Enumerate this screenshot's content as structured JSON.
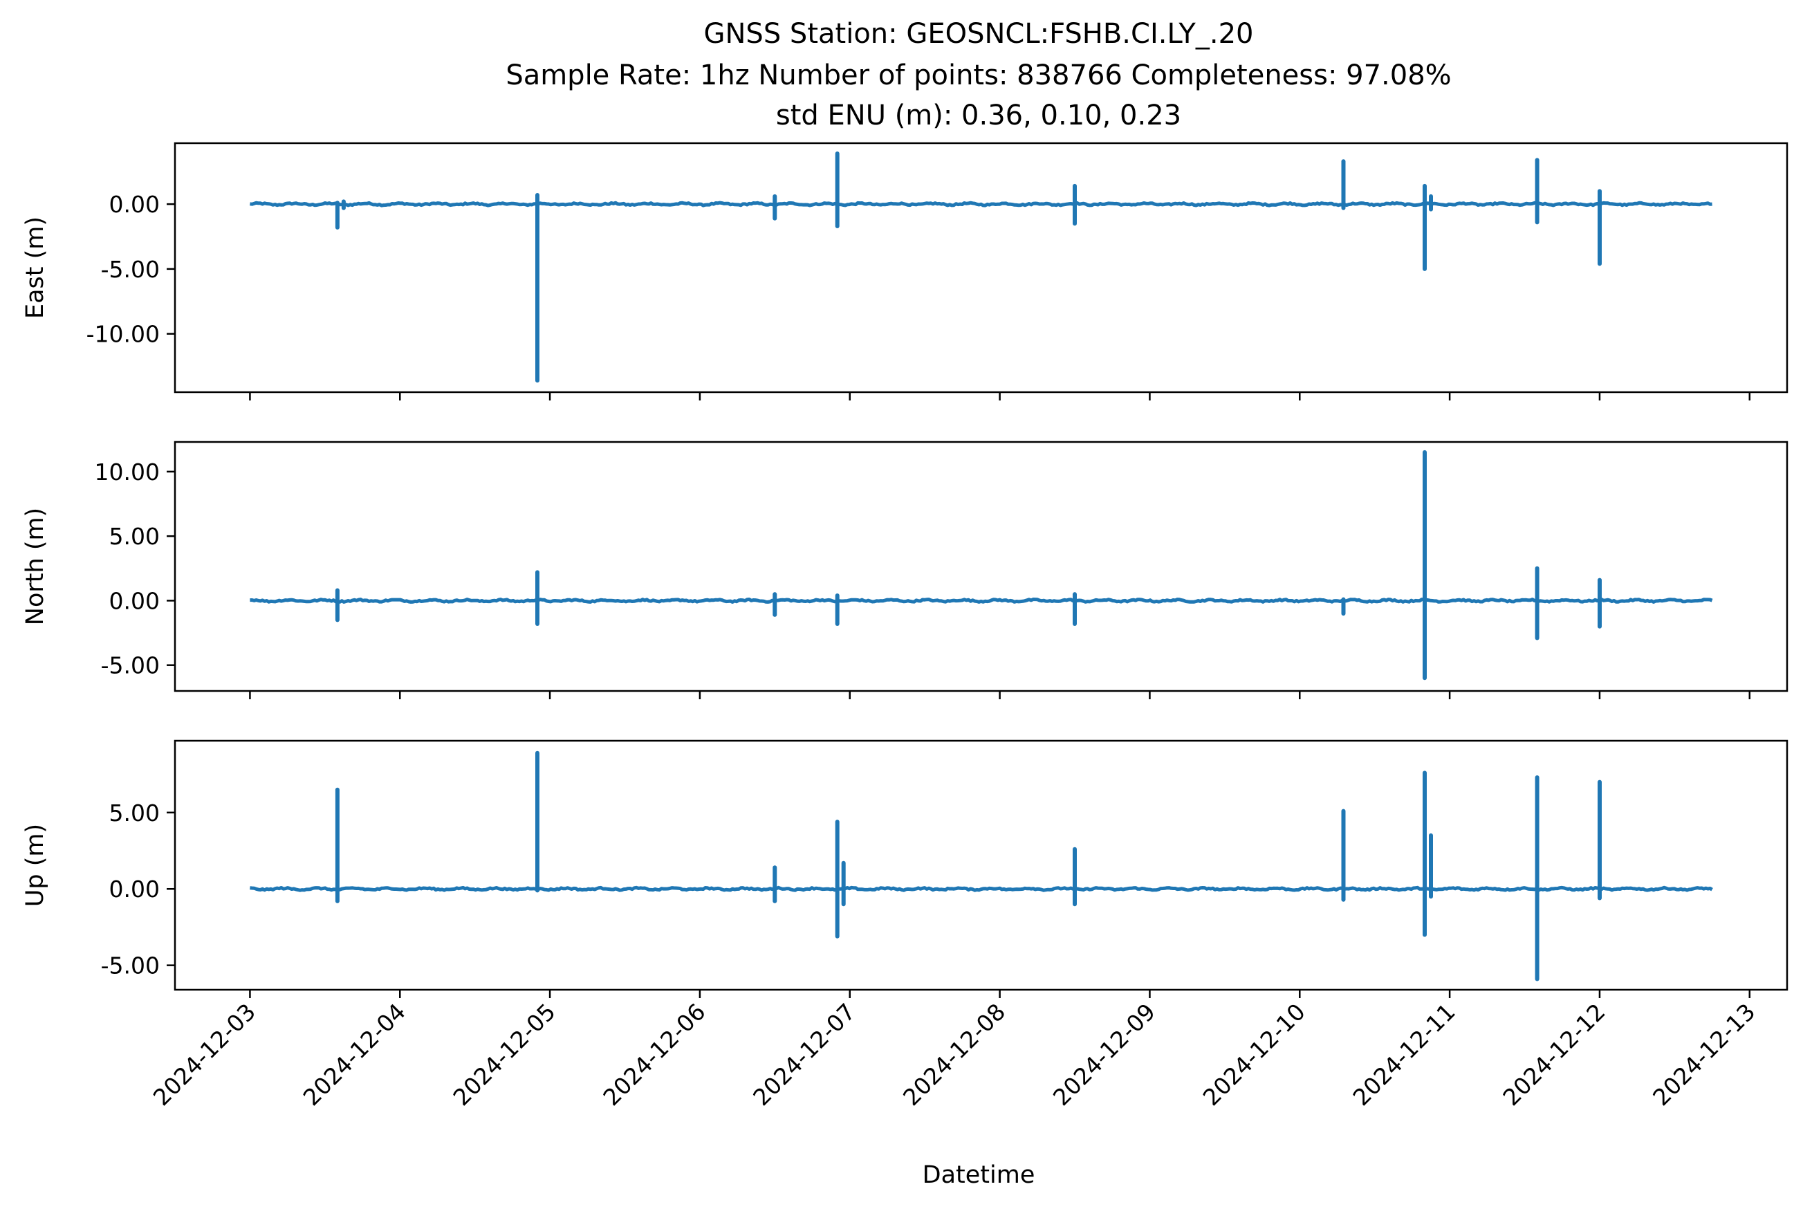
{
  "title": {
    "line1": "GNSS Station: GEOSNCL:FSHB.CI.LY_.20",
    "line2": "Sample Rate: 1hz   Number of points: 838766    Completeness:  97.08%",
    "line3": "std ENU (m):  0.36, 0.10, 0.23"
  },
  "xlabel": "Datetime",
  "chart_data": {
    "type": "line",
    "color": "#1f77b4",
    "x_ticks": [
      "2024-12-03",
      "2024-12-04",
      "2024-12-05",
      "2024-12-06",
      "2024-12-07",
      "2024-12-08",
      "2024-12-09",
      "2024-12-10",
      "2024-12-11",
      "2024-12-12",
      "2024-12-13"
    ],
    "x_range": [
      "2024-12-02T12:00",
      "2024-12-13T06:00"
    ],
    "panels": [
      {
        "ylabel": "East (m)",
        "ylim": [
          -14.5,
          4.7
        ],
        "yticks": [
          0,
          -5,
          -10
        ],
        "ytick_labels": [
          "0.00",
          "-5.00",
          "-10.00"
        ],
        "spikes": [
          {
            "t": "2024-12-03T14:00",
            "y": [
              0.1,
              -1.8
            ]
          },
          {
            "t": "2024-12-03T15:00",
            "y": [
              0.2,
              -0.3
            ]
          },
          {
            "t": "2024-12-04T22:00",
            "y": [
              0.7,
              -13.6
            ]
          },
          {
            "t": "2024-12-06T12:00",
            "y": [
              0.6,
              -1.1
            ]
          },
          {
            "t": "2024-12-06T22:00",
            "y": [
              3.9,
              -1.7
            ]
          },
          {
            "t": "2024-12-08T12:00",
            "y": [
              1.4,
              -1.5
            ]
          },
          {
            "t": "2024-12-10T07:00",
            "y": [
              3.3,
              -0.3
            ]
          },
          {
            "t": "2024-12-10T20:00",
            "y": [
              1.4,
              -5.0
            ]
          },
          {
            "t": "2024-12-10T21:00",
            "y": [
              0.6,
              -0.4
            ]
          },
          {
            "t": "2024-12-11T14:00",
            "y": [
              3.4,
              -1.4
            ]
          },
          {
            "t": "2024-12-12T00:00",
            "y": [
              1.0,
              -4.6
            ]
          }
        ]
      },
      {
        "ylabel": "North (m)",
        "ylim": [
          -7.0,
          12.3
        ],
        "yticks": [
          10,
          5,
          0,
          -5
        ],
        "ytick_labels": [
          "10.00",
          "5.00",
          "0.00",
          "-5.00"
        ],
        "spikes": [
          {
            "t": "2024-12-03T14:00",
            "y": [
              0.8,
              -1.5
            ]
          },
          {
            "t": "2024-12-04T22:00",
            "y": [
              2.2,
              -1.8
            ]
          },
          {
            "t": "2024-12-06T12:00",
            "y": [
              0.5,
              -1.1
            ]
          },
          {
            "t": "2024-12-06T22:00",
            "y": [
              0.4,
              -1.8
            ]
          },
          {
            "t": "2024-12-08T12:00",
            "y": [
              0.5,
              -1.8
            ]
          },
          {
            "t": "2024-12-10T07:00",
            "y": [
              0.1,
              -1.0
            ]
          },
          {
            "t": "2024-12-10T20:00",
            "y": [
              11.5,
              -6.0
            ]
          },
          {
            "t": "2024-12-11T14:00",
            "y": [
              2.5,
              -2.9
            ]
          },
          {
            "t": "2024-12-12T00:00",
            "y": [
              1.6,
              -2.0
            ]
          }
        ]
      },
      {
        "ylabel": "Up (m)",
        "ylim": [
          -6.6,
          9.7
        ],
        "yticks": [
          5,
          0,
          -5
        ],
        "ytick_labels": [
          "5.00",
          "0.00",
          "-5.00"
        ],
        "spikes": [
          {
            "t": "2024-12-03T14:00",
            "y": [
              6.5,
              -0.8
            ]
          },
          {
            "t": "2024-12-04T22:00",
            "y": [
              8.9,
              -0.1
            ]
          },
          {
            "t": "2024-12-06T12:00",
            "y": [
              1.4,
              -0.8
            ]
          },
          {
            "t": "2024-12-06T22:00",
            "y": [
              4.4,
              -3.1
            ]
          },
          {
            "t": "2024-12-06T23:00",
            "y": [
              1.7,
              -1.0
            ]
          },
          {
            "t": "2024-12-08T12:00",
            "y": [
              2.6,
              -1.0
            ]
          },
          {
            "t": "2024-12-10T07:00",
            "y": [
              5.1,
              -0.7
            ]
          },
          {
            "t": "2024-12-10T20:00",
            "y": [
              7.6,
              -3.0
            ]
          },
          {
            "t": "2024-12-10T21:00",
            "y": [
              3.5,
              -0.5
            ]
          },
          {
            "t": "2024-12-11T14:00",
            "y": [
              7.3,
              -5.9
            ]
          },
          {
            "t": "2024-12-12T00:00",
            "y": [
              7.0,
              -0.6
            ]
          }
        ]
      }
    ]
  }
}
